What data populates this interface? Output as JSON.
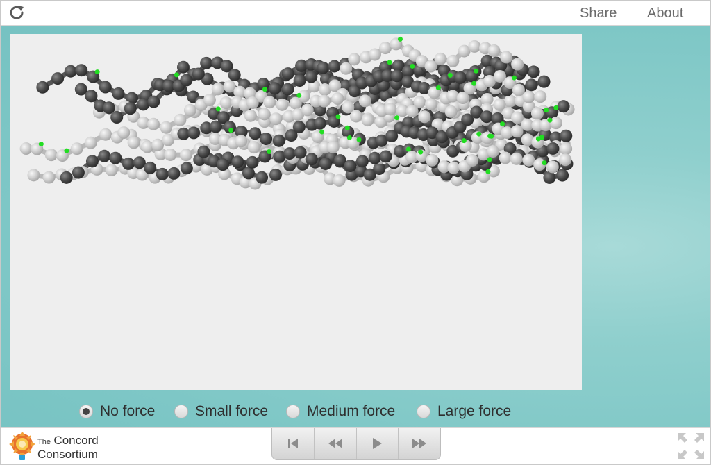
{
  "topbar": {
    "reload_icon": "reload-icon",
    "share_label": "Share",
    "about_label": "About"
  },
  "model": {
    "background": "#eeeeee",
    "dark_atom_color": "#4a4a4a",
    "light_atom_color": "#cfcfcf",
    "bond_marker_color": "#22dd22"
  },
  "forces": {
    "options": [
      {
        "label": "No force",
        "checked": true
      },
      {
        "label": "Small force",
        "checked": false
      },
      {
        "label": "Medium force",
        "checked": false
      },
      {
        "label": "Large force",
        "checked": false
      }
    ]
  },
  "bottombar": {
    "logo": {
      "the": "The",
      "line1": "Concord",
      "line2": "Consortium"
    },
    "playback_icons": [
      "skip-to-start-icon",
      "rewind-icon",
      "play-icon",
      "fast-forward-icon"
    ],
    "fullscreen_icon": "fullscreen-icon"
  }
}
